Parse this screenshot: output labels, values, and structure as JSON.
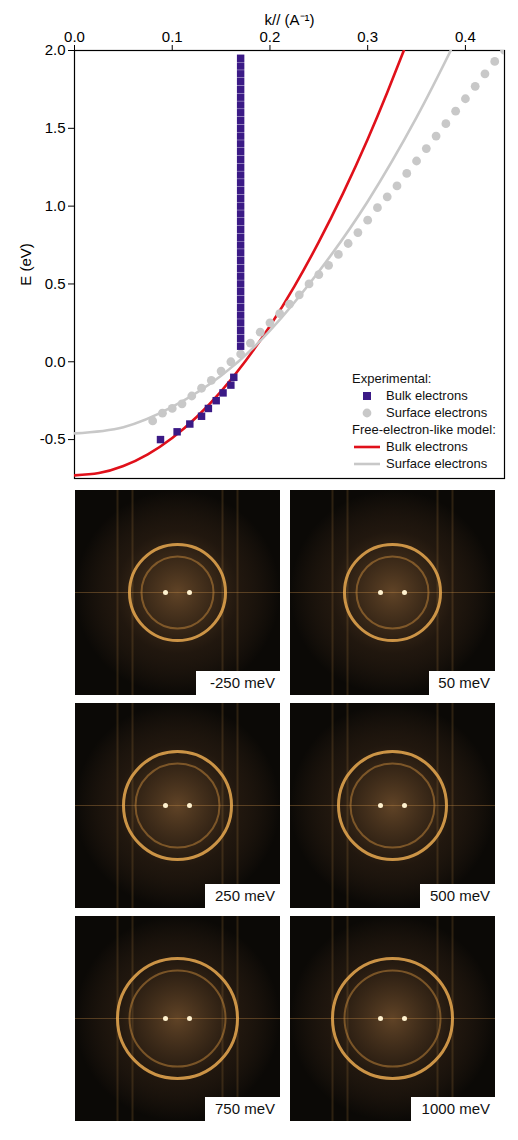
{
  "chart_data": {
    "type": "scatter",
    "x_label": "k// (A⁻¹)",
    "y_label": "E (eV)",
    "xlim": [
      0,
      0.44
    ],
    "xticks": [
      {
        "value": 0,
        "label": "0.0"
      },
      0.1,
      0.2,
      0.3,
      0.4
    ],
    "ylim": [
      -0.75,
      2.0
    ],
    "yticks": [
      -0.5,
      {
        "value": 0,
        "label": "0.0"
      },
      0.5,
      {
        "value": 1,
        "label": "1.0"
      },
      1.5,
      {
        "value": 2,
        "label": "2.0"
      }
    ],
    "legend": "lower right",
    "series": [
      {
        "name": "Bulk electrons",
        "legend_group": "Free-electron-like model:",
        "type": "line",
        "line_style": "solid",
        "color": "#e0101a",
        "x": [
          0,
          0.025,
          0.05,
          0.075,
          0.1,
          0.125,
          0.15,
          0.175,
          0.2,
          0.225,
          0.25,
          0.275,
          0.3,
          0.32,
          0.337
        ],
        "values": [
          -0.73,
          -0.715,
          -0.67,
          -0.595,
          -0.49,
          -0.355,
          -0.19,
          0.005,
          0.23,
          0.485,
          0.77,
          1.085,
          1.43,
          1.73,
          2.0
        ]
      },
      {
        "name": "Surface electrons",
        "legend_group": "Free-electron-like model:",
        "type": "line",
        "line_style": "solid",
        "color": "#c8c8c8",
        "x": [
          0,
          0.05,
          0.1,
          0.15,
          0.2,
          0.25,
          0.3,
          0.35,
          0.385
        ],
        "values": [
          -0.46,
          -0.42,
          -0.29,
          -0.09,
          0.2,
          0.58,
          1.03,
          1.57,
          2.0
        ]
      },
      {
        "name": "Surface electrons",
        "legend_group": "Experimental:",
        "type": "scatter",
        "marker": "circle",
        "color": "#c8c8c8",
        "x": [
          0.08,
          0.09,
          0.1,
          0.11,
          0.12,
          0.13,
          0.14,
          0.15,
          0.16,
          0.17,
          0.18,
          0.19,
          0.2,
          0.21,
          0.22,
          0.23,
          0.24,
          0.25,
          0.26,
          0.27,
          0.28,
          0.29,
          0.3,
          0.31,
          0.32,
          0.33,
          0.34,
          0.35,
          0.36,
          0.37,
          0.38,
          0.39,
          0.4,
          0.41,
          0.42,
          0.43,
          0.44
        ],
        "values": [
          -0.38,
          -0.33,
          -0.3,
          -0.27,
          -0.22,
          -0.17,
          -0.12,
          -0.06,
          0.0,
          0.05,
          0.12,
          0.19,
          0.25,
          0.31,
          0.37,
          0.43,
          0.5,
          0.56,
          0.62,
          0.69,
          0.76,
          0.83,
          0.91,
          0.99,
          1.06,
          1.13,
          1.21,
          1.29,
          1.37,
          1.45,
          1.53,
          1.61,
          1.69,
          1.77,
          1.85,
          1.93,
          2.0
        ]
      },
      {
        "name": "Bulk electrons",
        "legend_group": "Experimental:",
        "type": "scatter",
        "marker": "square",
        "color": "#3b1a86",
        "x": [
          0.088,
          0.105,
          0.118,
          0.13,
          0.137,
          0.145,
          0.152,
          0.16,
          0.163,
          0.17,
          0.17,
          0.17,
          0.17,
          0.17,
          0.17,
          0.17,
          0.17,
          0.17,
          0.17,
          0.17,
          0.17,
          0.17,
          0.17,
          0.17,
          0.17,
          0.17,
          0.17,
          0.17,
          0.17,
          0.17,
          0.17,
          0.17,
          0.17,
          0.17,
          0.17,
          0.17,
          0.17,
          0.17,
          0.17,
          0.17,
          0.17,
          0.17,
          0.17,
          0.17,
          0.17,
          0.17,
          0.17
        ],
        "values": [
          -0.5,
          -0.45,
          -0.4,
          -0.35,
          -0.3,
          -0.25,
          -0.2,
          -0.15,
          -0.1,
          0.1,
          0.15,
          0.2,
          0.25,
          0.3,
          0.35,
          0.4,
          0.45,
          0.5,
          0.55,
          0.6,
          0.65,
          0.7,
          0.75,
          0.8,
          0.85,
          0.9,
          0.95,
          1.0,
          1.05,
          1.1,
          1.15,
          1.2,
          1.25,
          1.3,
          1.35,
          1.4,
          1.45,
          1.5,
          1.55,
          1.6,
          1.65,
          1.7,
          1.75,
          1.8,
          1.85,
          1.9,
          1.95
        ]
      }
    ]
  },
  "images": {
    "labels": [
      "-250 meV",
      "50 meV",
      "250 meV",
      "500 meV",
      "750 meV",
      "1000 meV"
    ]
  }
}
